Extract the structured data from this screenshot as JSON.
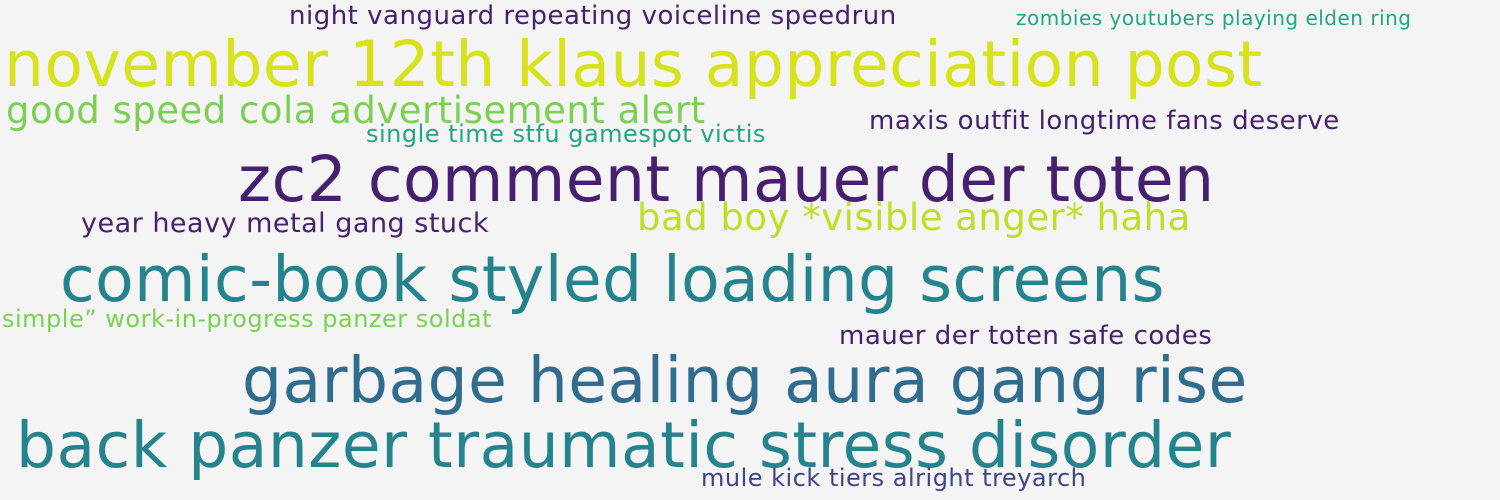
{
  "colors": {
    "background": "#f4f4f4",
    "dark_purple": "#46206e",
    "indigo": "#3f4388",
    "blue": "#2f6c8e",
    "teal": "#25838e",
    "green_teal": "#21a585",
    "light_green": "#7ad151",
    "yellow_green": "#bddf26",
    "yellow": "#d7e21b"
  },
  "phrases": [
    {
      "text": "night vanguard repeating voiceline speedrun",
      "color": "#46206e"
    },
    {
      "text": "zombies youtubers playing elden ring",
      "color": "#21a585"
    },
    {
      "text": "november 12th klaus appreciation post",
      "color": "#d7e21b"
    },
    {
      "text": "good speed cola advertisement alert",
      "color": "#7ad151"
    },
    {
      "text": "single time stfu gamespot victis",
      "color": "#21a585"
    },
    {
      "text": "maxis outfit longtime fans deserve",
      "color": "#46206e"
    },
    {
      "text": "zc2 comment mauer der toten",
      "color": "#46206e"
    },
    {
      "text": "year heavy metal gang stuck",
      "color": "#46206e"
    },
    {
      "text": "bad boy *visible anger* haha",
      "color": "#bddf26"
    },
    {
      "text": "comic-book styled loading screens",
      "color": "#25838e"
    },
    {
      "text": "simple” work-in-progress panzer soldat",
      "color": "#7ad151"
    },
    {
      "text": "mauer der toten safe codes",
      "color": "#46206e"
    },
    {
      "text": "garbage healing aura gang rise",
      "color": "#2f6c8e"
    },
    {
      "text": "back panzer traumatic stress disorder",
      "color": "#25838e"
    },
    {
      "text": "mule kick tiers alright treyarch",
      "color": "#3f4388"
    }
  ]
}
